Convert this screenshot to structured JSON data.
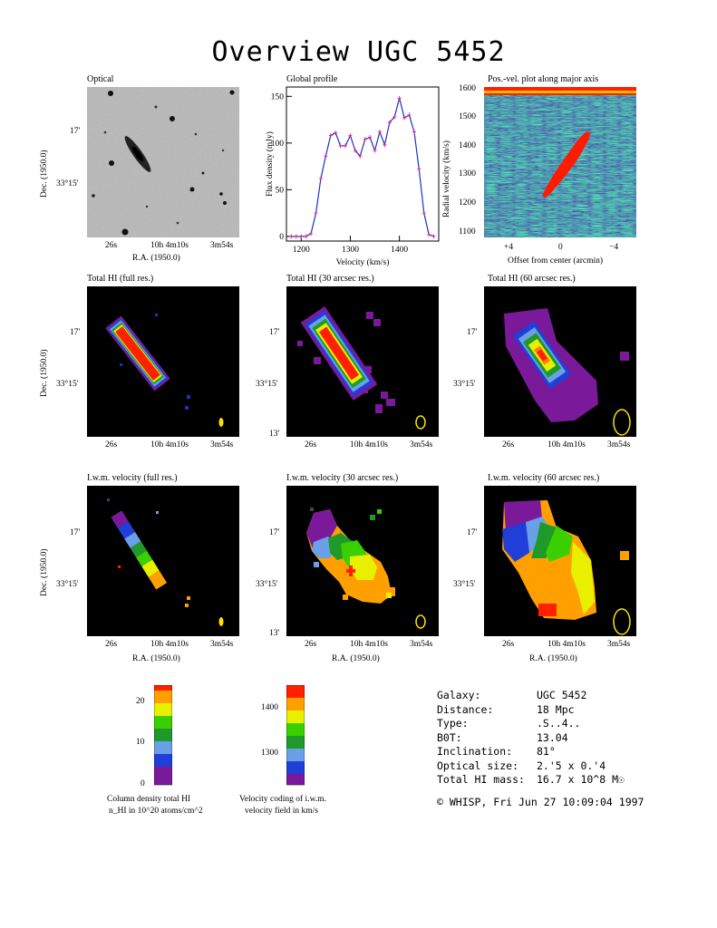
{
  "header": {
    "title": "Overview UGC 5452"
  },
  "axes": {
    "dec_label": "Dec. (1950.0)",
    "ra_label": "R.A. (1950.0)",
    "dec_ticks": [
      "17'",
      "33°15'",
      "13'"
    ],
    "ra_ticks": [
      "26s",
      "10h 4m10s",
      "3m54s"
    ]
  },
  "panels": {
    "optical": {
      "title": "Optical"
    },
    "profile": {
      "title": "Global profile",
      "xlabel": "Velocity (km/s)",
      "ylabel": "Flux density (mJy)"
    },
    "pv": {
      "title": "Pos.-vel. plot along major axis",
      "xlabel": "Offset from center (arcmin)",
      "ylabel": "Radial velocity (km/s)",
      "xticks": [
        "+4",
        "0",
        "−4"
      ],
      "yticks": [
        "1600",
        "1500",
        "1400",
        "1300",
        "1200",
        "1100"
      ]
    },
    "hi_full": {
      "title": "Total HI (full res.)"
    },
    "hi_30": {
      "title": "Total HI (30 arcsec res.)"
    },
    "hi_60": {
      "title": "Total HI (60 arcsec res.)"
    },
    "vel_full": {
      "title": "I.w.m. velocity (full res.)"
    },
    "vel_30": {
      "title": "I.w.m. velocity (30 arcsec res.)"
    },
    "vel_60": {
      "title": "I.w.m. velocity (60 arcsec res.)"
    }
  },
  "colorbars": {
    "column": {
      "ticks": [
        "20",
        "10",
        "0"
      ],
      "caption1": "Column density total HI",
      "caption2": "n_HI in 10^20 atoms/cm^2"
    },
    "velocity": {
      "ticks": [
        "1400",
        "1300"
      ],
      "caption1": "Velocity coding of i.w.m.",
      "caption2": "velocity field in km/s"
    }
  },
  "info": {
    "rows": [
      {
        "label": "Galaxy:",
        "value": "UGC 5452"
      },
      {
        "label": "Distance:",
        "value": "18 Mpc"
      },
      {
        "label": "Type:",
        "value": ".S..4.."
      },
      {
        "label": "B0T:",
        "value": "13.04"
      },
      {
        "label": "Inclination:",
        "value": "81°"
      },
      {
        "label": "Optical size:",
        "value": "2.'5 x 0.'4"
      },
      {
        "label": "Total HI mass:",
        "value": "16.7 x 10^8 M☉"
      }
    ],
    "credit": "© WHISP, Fri Jun 27 10:09:04 1997"
  },
  "chart_data": [
    {
      "type": "line",
      "title": "Global profile",
      "xlabel": "Velocity (km/s)",
      "ylabel": "Flux density (mJy)",
      "xlim": [
        1170,
        1480
      ],
      "ylim": [
        -5,
        160
      ],
      "xticks": [
        1200,
        1300,
        1400
      ],
      "yticks": [
        0,
        50,
        100,
        150
      ],
      "x": [
        1180,
        1190,
        1200,
        1210,
        1220,
        1230,
        1240,
        1250,
        1260,
        1270,
        1280,
        1290,
        1300,
        1310,
        1320,
        1330,
        1340,
        1350,
        1360,
        1370,
        1380,
        1390,
        1400,
        1410,
        1420,
        1430,
        1440,
        1450,
        1460,
        1470
      ],
      "values": [
        0,
        0,
        0,
        0,
        3,
        25,
        62,
        86,
        108,
        111,
        97,
        97,
        108,
        92,
        86,
        104,
        106,
        92,
        112,
        98,
        122,
        128,
        148,
        127,
        130,
        112,
        72,
        25,
        2,
        0
      ]
    }
  ]
}
